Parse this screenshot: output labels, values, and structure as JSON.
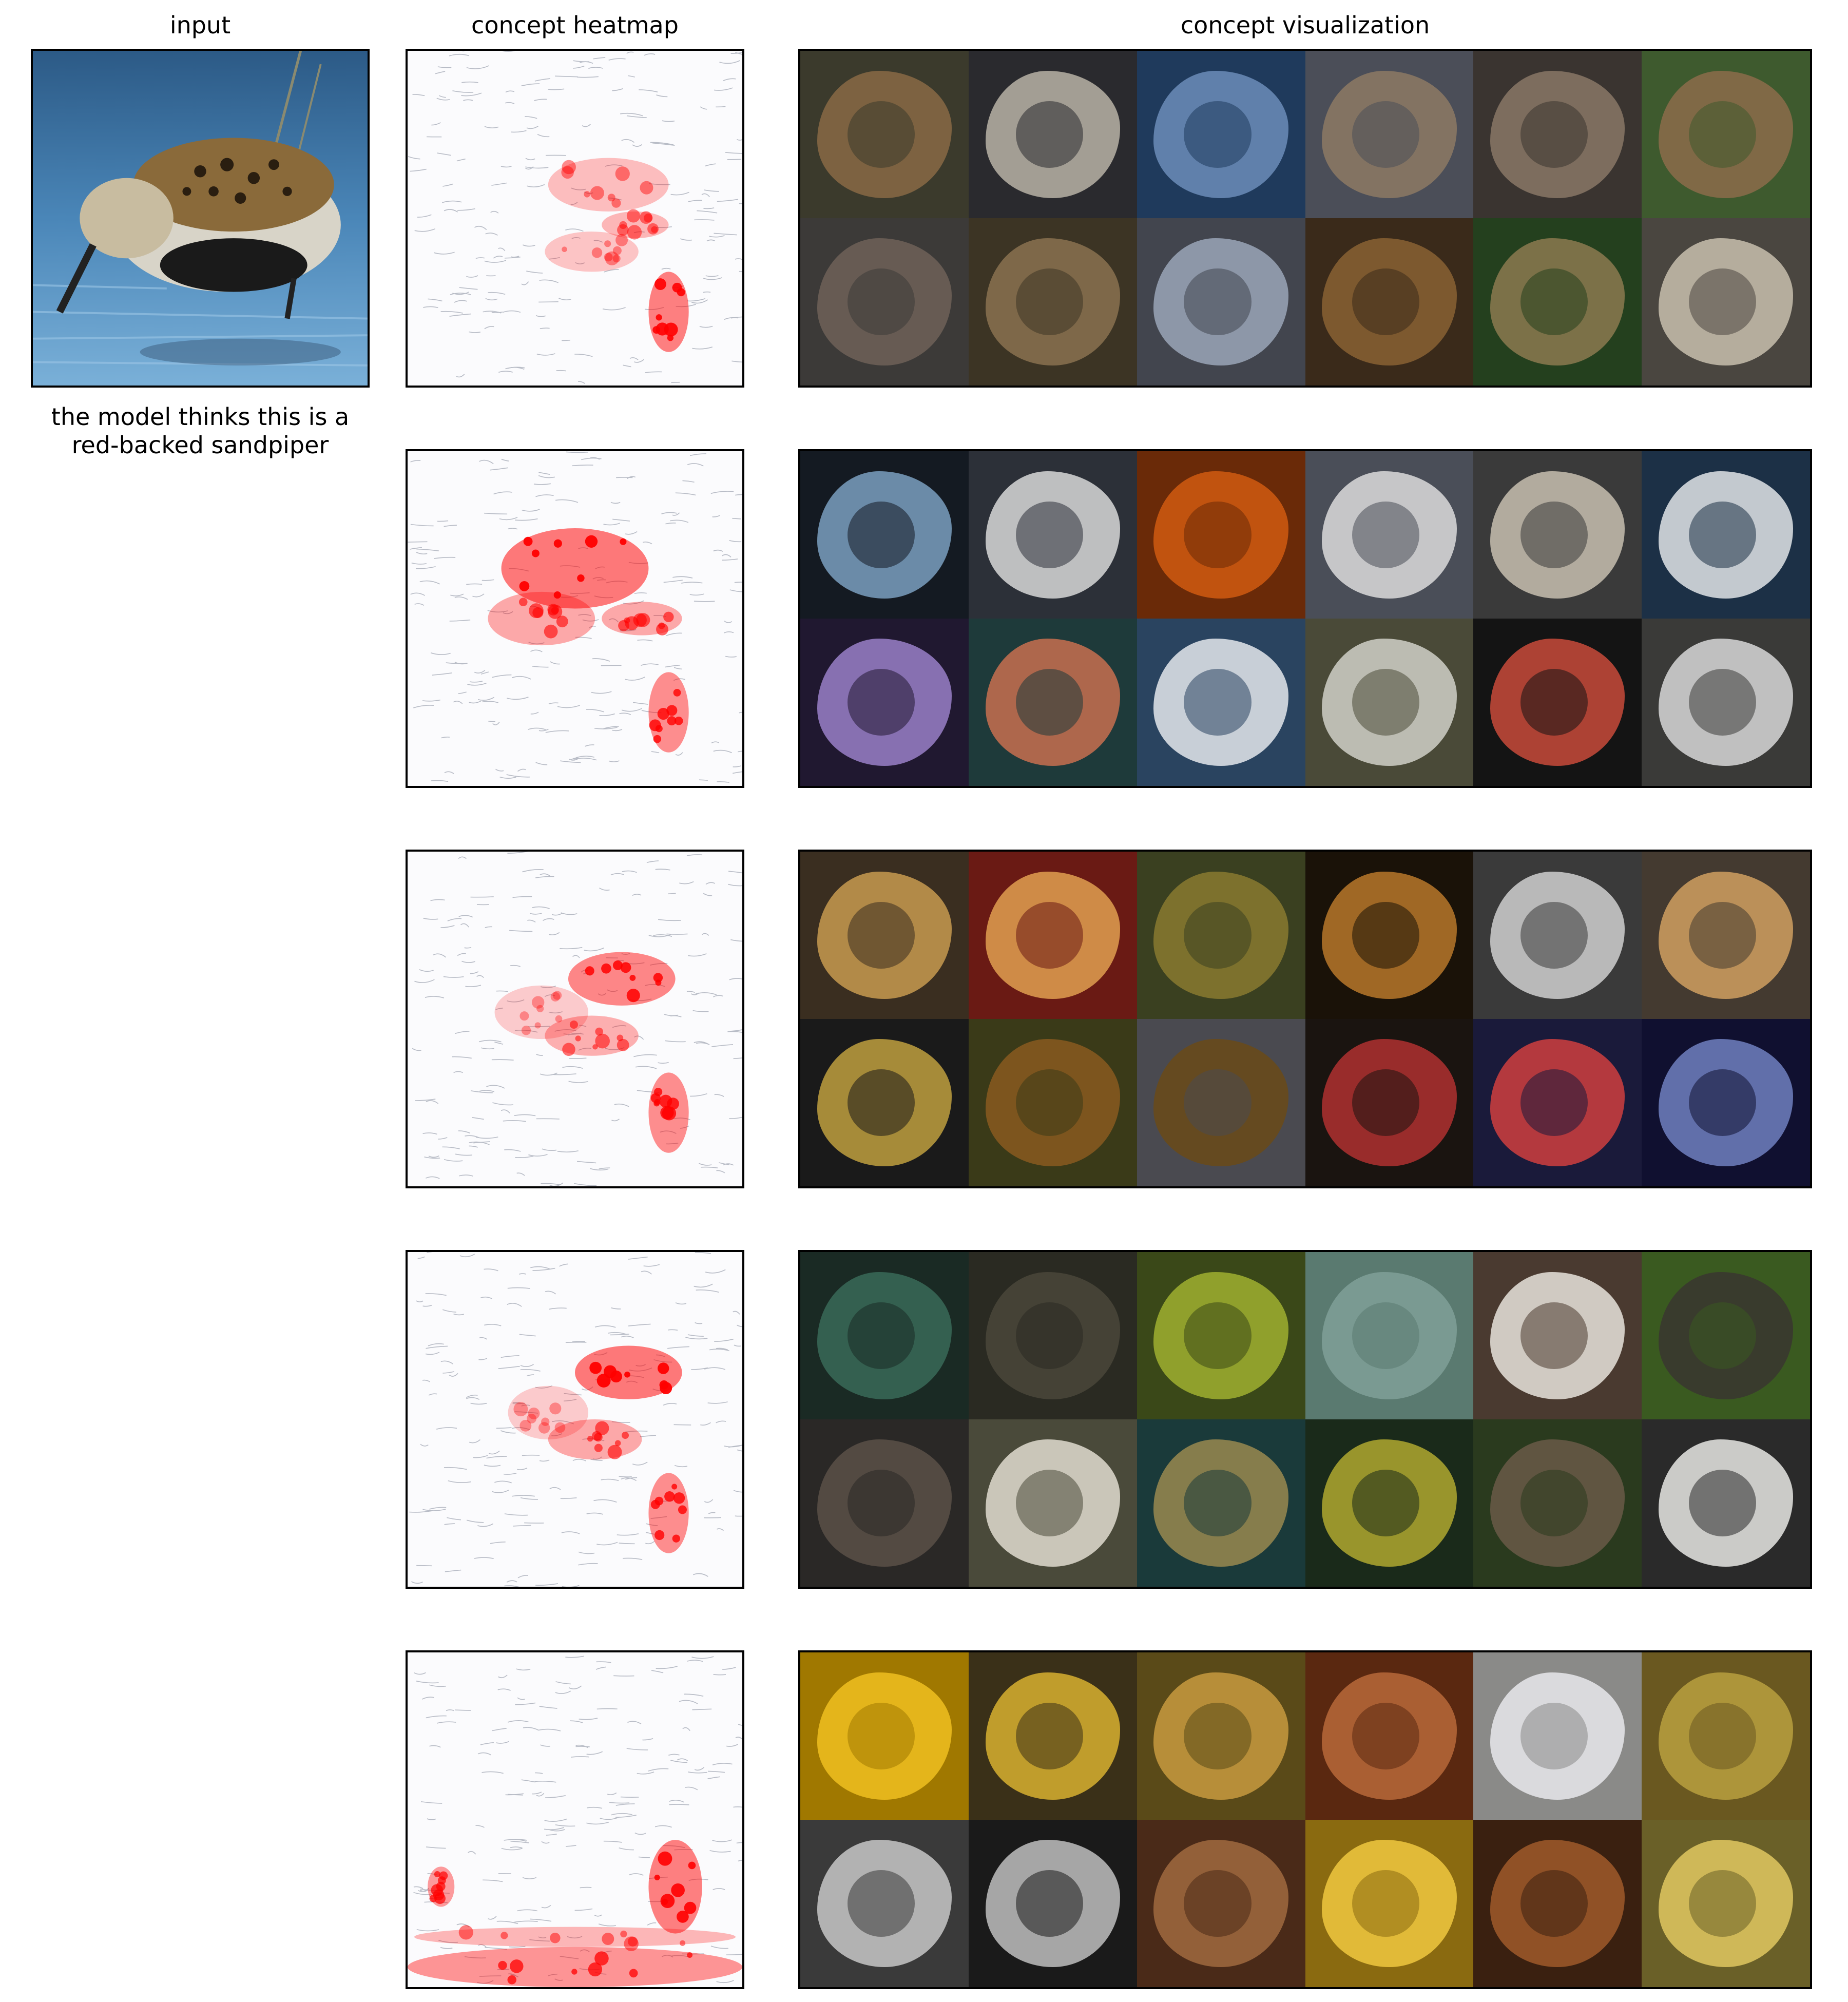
{
  "column_titles": {
    "input": "input",
    "heatmap": "concept heatmap",
    "visualization": "concept visualization"
  },
  "input_caption": "the model thinks this is a\nred-backed sandpiper",
  "accent_color": "#ff0000",
  "input_image": {
    "description_icon": "sandpiper-photo-icon"
  },
  "concepts": [
    {
      "heatmap_icon": "heatmap-icon",
      "tiles": [
        {
          "icon": "grouse-icon",
          "bg": "#3b3a2c",
          "fg": "#8a6a45"
        },
        {
          "icon": "ptarmigan-icon",
          "bg": "#2a2a2e",
          "fg": "#b9b3a6"
        },
        {
          "icon": "sandpipers-icon",
          "bg": "#1f3a5c",
          "fg": "#6c8db8"
        },
        {
          "icon": "grouse-icon",
          "bg": "#4b4e58",
          "fg": "#8d7a64"
        },
        {
          "icon": "sandpiper-icon",
          "bg": "#3a3430",
          "fg": "#8a7866"
        },
        {
          "icon": "grouse-icon",
          "bg": "#3e5a2e",
          "fg": "#8c6c4a"
        },
        {
          "icon": "bird-icon",
          "bg": "#3c3a38",
          "fg": "#6e6258"
        },
        {
          "icon": "bird-icon",
          "bg": "#3c3424",
          "fg": "#8a7250"
        },
        {
          "icon": "sandpiper-icon",
          "bg": "#42454e",
          "fg": "#9aa6b8"
        },
        {
          "icon": "quail-icon",
          "bg": "#3a2a1a",
          "fg": "#8a6234"
        },
        {
          "icon": "quail-icon",
          "bg": "#24401e",
          "fg": "#8c7a50"
        },
        {
          "icon": "sandpiper-icon",
          "bg": "#4a4640",
          "fg": "#c8bfae"
        }
      ]
    },
    {
      "heatmap_icon": "heatmap-icon",
      "tiles": [
        {
          "icon": "structure-icon",
          "bg": "#141a22",
          "fg": "#7aa0c0"
        },
        {
          "icon": "cruise-ship-icon",
          "bg": "#2c3038",
          "fg": "#d8d8d8"
        },
        {
          "icon": "orange-pattern-icon",
          "bg": "#6a2a08",
          "fg": "#d05a10"
        },
        {
          "icon": "cruise-ship-icon",
          "bg": "#4a4e58",
          "fg": "#dcdcdc"
        },
        {
          "icon": "cruise-ship-icon",
          "bg": "#3a3a3a",
          "fg": "#c8c0b0"
        },
        {
          "icon": "cruise-ship-icon",
          "bg": "#1c3046",
          "fg": "#e0e4e8"
        },
        {
          "icon": "lionfish-icon",
          "bg": "#201830",
          "fg": "#9a80c8"
        },
        {
          "icon": "lionfish-icon",
          "bg": "#1e3a3a",
          "fg": "#c87050"
        },
        {
          "icon": "cruise-ship-icon",
          "bg": "#2a4460",
          "fg": "#e4e8ec"
        },
        {
          "icon": "zebra-icon",
          "bg": "#4a4a38",
          "fg": "#d0d0c8"
        },
        {
          "icon": "lionfish-icon",
          "bg": "#141414",
          "fg": "#c84a3a"
        },
        {
          "icon": "zebra-icon",
          "bg": "#3a3a38",
          "fg": "#d8d8d8"
        }
      ]
    },
    {
      "heatmap_icon": "heatmap-icon",
      "tiles": [
        {
          "icon": "jaguar-icon",
          "bg": "#3a2e20",
          "fg": "#c89a50"
        },
        {
          "icon": "quilt-icon",
          "bg": "#6a1a14",
          "fg": "#e0a050"
        },
        {
          "icon": "turtle-icon",
          "bg": "#3a4020",
          "fg": "#8a7a30"
        },
        {
          "icon": "jaguar-icon",
          "bg": "#1a1208",
          "fg": "#b8782a"
        },
        {
          "icon": "newspaper-icon",
          "bg": "#3a3a3a",
          "fg": "#d0d0d0"
        },
        {
          "icon": "jaguar-icon",
          "bg": "#443a30",
          "fg": "#d0a060"
        },
        {
          "icon": "slot-machine-icon",
          "bg": "#1a1a1a",
          "fg": "#c0a040"
        },
        {
          "icon": "turtle-icon",
          "bg": "#3a3a18",
          "fg": "#8a5a20"
        },
        {
          "icon": "turtle-icon",
          "bg": "#4a4a50",
          "fg": "#6a4a18"
        },
        {
          "icon": "slot-machine-icon",
          "bg": "#1a1410",
          "fg": "#b03030"
        },
        {
          "icon": "slot-machine-icon",
          "bg": "#1a1a3a",
          "fg": "#d04040"
        },
        {
          "icon": "slot-machine-icon",
          "bg": "#101030",
          "fg": "#7080c0"
        }
      ]
    },
    {
      "heatmap_icon": "heatmap-icon",
      "tiles": [
        {
          "icon": "coral-icon",
          "bg": "#1a2a24",
          "fg": "#3a6a58"
        },
        {
          "icon": "boar-icon",
          "bg": "#2a2a22",
          "fg": "#4a463a"
        },
        {
          "icon": "brain-coral-icon",
          "bg": "#3a4818",
          "fg": "#a0b030"
        },
        {
          "icon": "coral-icon",
          "bg": "#5a7a70",
          "fg": "#80a098"
        },
        {
          "icon": "paper-towel-icon",
          "bg": "#4a3a30",
          "fg": "#e8e4dc"
        },
        {
          "icon": "boar-icon",
          "bg": "#3a5a20",
          "fg": "#3a3630"
        },
        {
          "icon": "boar-icon",
          "bg": "#2a2826",
          "fg": "#5a5048"
        },
        {
          "icon": "paper-towel-icon",
          "bg": "#4a4a3a",
          "fg": "#e0dcd0"
        },
        {
          "icon": "brain-coral-icon",
          "bg": "#1a3a3a",
          "fg": "#9a8a50"
        },
        {
          "icon": "brain-coral-icon",
          "bg": "#1a2a1a",
          "fg": "#b0a830"
        },
        {
          "icon": "boar-icon",
          "bg": "#2a3a1e",
          "fg": "#6a5a48"
        },
        {
          "icon": "paper-towel-icon",
          "bg": "#2a2a2a",
          "fg": "#e8e8e4"
        }
      ]
    },
    {
      "heatmap_icon": "heatmap-icon",
      "tiles": [
        {
          "icon": "corn-icon",
          "bg": "#a07800",
          "fg": "#f0c020"
        },
        {
          "icon": "corn-icon",
          "bg": "#3a3018",
          "fg": "#d8b030"
        },
        {
          "icon": "salad-icon",
          "bg": "#5a4a18",
          "fg": "#c89a40"
        },
        {
          "icon": "dresser-icon",
          "bg": "#5a2810",
          "fg": "#b8683a"
        },
        {
          "icon": "menu-board-icon",
          "bg": "#8a8a88",
          "fg": "#e8e8ec"
        },
        {
          "icon": "menu-board-icon",
          "bg": "#6a5820",
          "fg": "#b8a040"
        },
        {
          "icon": "file-cabinet-icon",
          "bg": "#3a3a3a",
          "fg": "#c8c8c8"
        },
        {
          "icon": "file-cabinet-icon",
          "bg": "#1a1a1a",
          "fg": "#c0c0c0"
        },
        {
          "icon": "dresser-icon",
          "bg": "#4a2a18",
          "fg": "#a06a40"
        },
        {
          "icon": "corn-icon",
          "bg": "#8a6a10",
          "fg": "#f0c840"
        },
        {
          "icon": "dresser-icon",
          "bg": "#3a2010",
          "fg": "#a05a2a"
        },
        {
          "icon": "file-cabinet-icon",
          "bg": "#6a6028",
          "fg": "#e0c860"
        }
      ]
    }
  ]
}
